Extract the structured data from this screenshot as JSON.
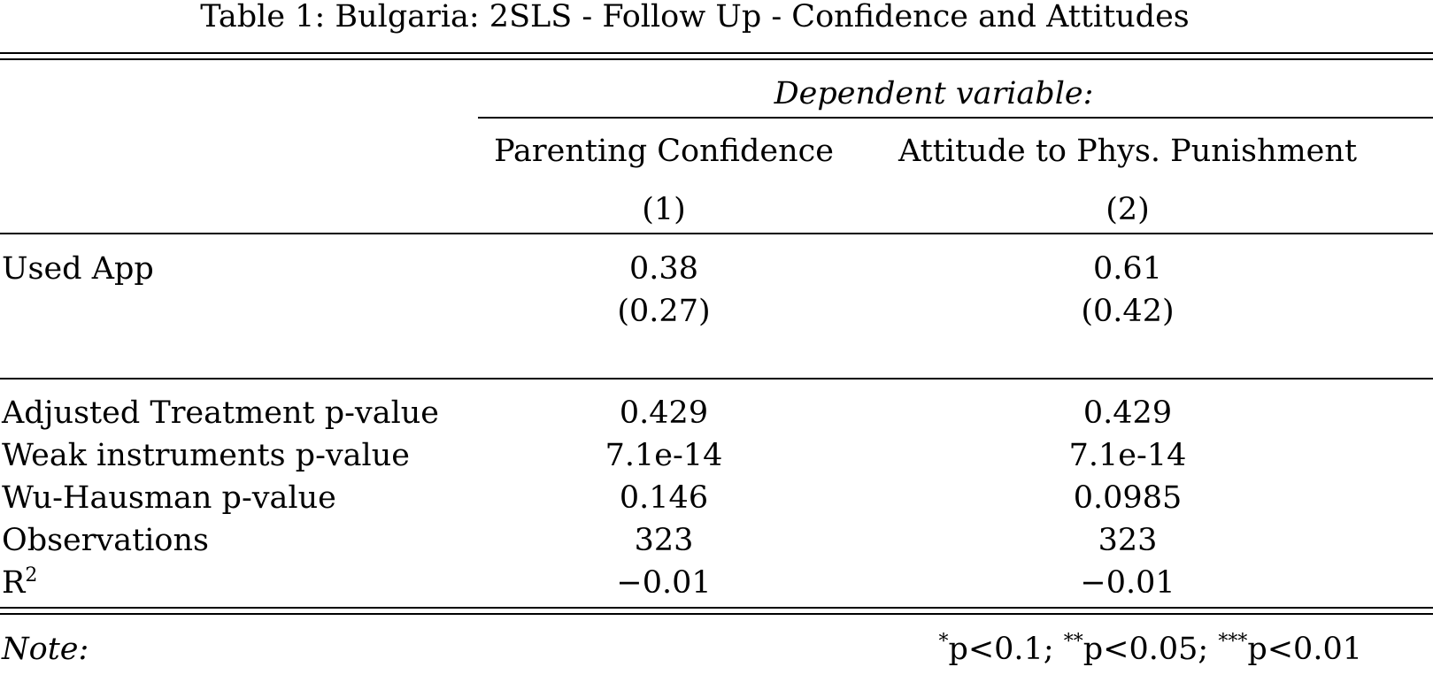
{
  "table": {
    "title": "Table 1: Bulgaria: 2SLS - Follow Up - Confidence and Attitudes",
    "dep_var_label": "Dependent variable:",
    "columns": [
      {
        "name": "Parenting Confidence",
        "number": "(1)"
      },
      {
        "name": "Attitude to Phys. Punishment",
        "number": "(2)"
      }
    ],
    "coef_row": {
      "label": "Used App",
      "estimates": [
        "0.38",
        "0.61"
      ],
      "std_errors": [
        "(0.27)",
        "(0.42)"
      ]
    },
    "stats_rows": [
      {
        "label": "Adjusted Treatment p-value",
        "values": [
          "0.429",
          "0.429"
        ]
      },
      {
        "label": "Weak instruments p-value",
        "values": [
          "7.1e-14",
          "7.1e-14"
        ]
      },
      {
        "label": "Wu-Hausman p-value",
        "values": [
          "0.146",
          "0.0985"
        ]
      },
      {
        "label": "Observations",
        "values": [
          "323",
          "323"
        ]
      }
    ],
    "r2_row": {
      "label_base": "R",
      "label_sup": "2",
      "values": [
        "−0.01",
        "−0.01"
      ]
    },
    "note": {
      "label": "Note:",
      "sig1_sup": "*",
      "sig1_text": "p<0.1; ",
      "sig2_sup": "**",
      "sig2_text": "p<0.05; ",
      "sig3_sup": "***",
      "sig3_text": "p<0.01"
    }
  }
}
